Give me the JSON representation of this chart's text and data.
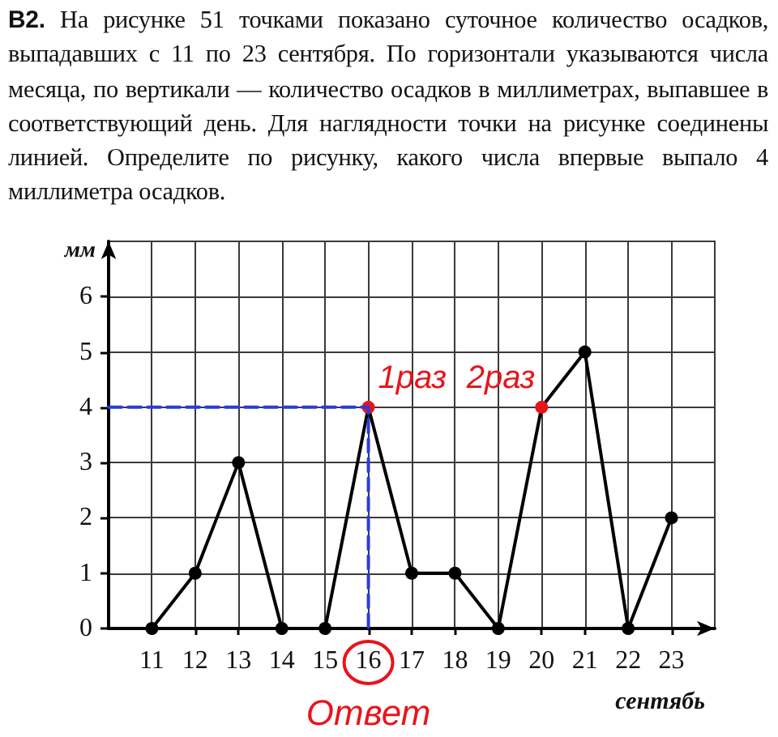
{
  "chart_data": {
    "type": "line",
    "title": "В2.",
    "subtitle": "На рисунке 51 точками показано суточное количество осадков, выпадавших с 11 по 23 сентября. По горизонтали указываются числа месяца, по вертикали — количество осадков в миллиметрах, выпавшее в соответствующий день. Для наглядности точки на рисунке соединены линией. Определите по рисунку, какого числа впервые выпало 4 миллиметра осадков.",
    "xlabel": "сентябь",
    "ylabel": "мм",
    "series": [
      {
        "x": [
          11,
          12,
          13,
          14,
          15,
          16,
          17,
          18,
          19,
          20,
          21,
          22,
          23
        ],
        "values": [
          0,
          1,
          3,
          0,
          0,
          4,
          1,
          1,
          0,
          4,
          5,
          0,
          2
        ],
        "color": "#000000",
        "colors": [
          "#000000",
          "#000000",
          "#000000",
          "#000000",
          "#000000",
          "#e8141b",
          "#000000",
          "#000000",
          "#000000",
          "#e8141b",
          "#000000",
          "#000000",
          "#000000"
        ]
      },
      {
        "x": [
          10,
          16,
          16
        ],
        "values": [
          4,
          4,
          0
        ],
        "color": "#2a3cd8",
        "line_style": "dashed",
        "marker": "none"
      }
    ],
    "xlim": [
      10,
      24
    ],
    "xticks": [
      11,
      12,
      13,
      14,
      15,
      16,
      17,
      18,
      19,
      20,
      21,
      22,
      23
    ],
    "ylim": [
      0,
      7
    ],
    "yticks": [
      0,
      1,
      2,
      3,
      4,
      5,
      6
    ],
    "grid": true,
    "marker": "circle",
    "line_style": "solid",
    "annotations": [
      {
        "text": "1раз",
        "x": 16,
        "y": 4
      },
      {
        "text": "2раз",
        "x": 20,
        "y": 4
      },
      "Ответ"
    ]
  }
}
